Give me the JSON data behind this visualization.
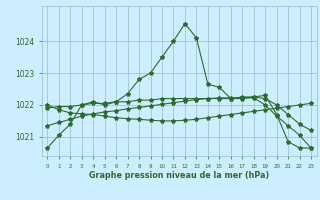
{
  "bg_color": "#cceeff",
  "grid_color": "#99bbcc",
  "line_color": "#2d6b2d",
  "xlabel": "Graphe pression niveau de la mer (hPa)",
  "ylim": [
    1020.4,
    1025.1
  ],
  "yticks": [
    1021,
    1022,
    1023,
    1024
  ],
  "xticks": [
    0,
    1,
    2,
    3,
    4,
    5,
    6,
    7,
    8,
    9,
    10,
    11,
    12,
    13,
    14,
    15,
    16,
    17,
    18,
    19,
    20,
    21,
    22,
    23
  ],
  "series1": [
    1020.65,
    1021.05,
    1021.4,
    1022.0,
    1022.1,
    1022.0,
    1022.1,
    1022.35,
    1022.8,
    1023.0,
    1023.5,
    1024.0,
    1024.55,
    1024.1,
    1022.65,
    1022.55,
    1022.2,
    1022.2,
    1022.25,
    1022.3,
    1021.7,
    1020.85,
    1020.65,
    1020.65
  ],
  "series2": [
    1021.9,
    1021.95,
    1021.95,
    1022.0,
    1022.05,
    1022.05,
    1022.1,
    1022.1,
    1022.15,
    1022.15,
    1022.2,
    1022.2,
    1022.2,
    1022.2,
    1022.2,
    1022.2,
    1022.2,
    1022.25,
    1022.25,
    1022.2,
    1022.0,
    1021.7,
    1021.4,
    1021.2
  ],
  "series3": [
    1022.0,
    1021.85,
    1021.75,
    1021.72,
    1021.7,
    1021.65,
    1021.6,
    1021.57,
    1021.55,
    1021.52,
    1021.5,
    1021.5,
    1021.52,
    1021.55,
    1021.6,
    1021.65,
    1021.7,
    1021.75,
    1021.8,
    1021.85,
    1021.9,
    1021.95,
    1022.0,
    1022.05
  ],
  "series4": [
    1021.35,
    1021.45,
    1021.55,
    1021.65,
    1021.72,
    1021.78,
    1021.82,
    1021.88,
    1021.92,
    1021.97,
    1022.02,
    1022.07,
    1022.12,
    1022.17,
    1022.2,
    1022.22,
    1022.22,
    1022.22,
    1022.22,
    1022.0,
    1021.65,
    1021.35,
    1021.05,
    1020.65
  ]
}
